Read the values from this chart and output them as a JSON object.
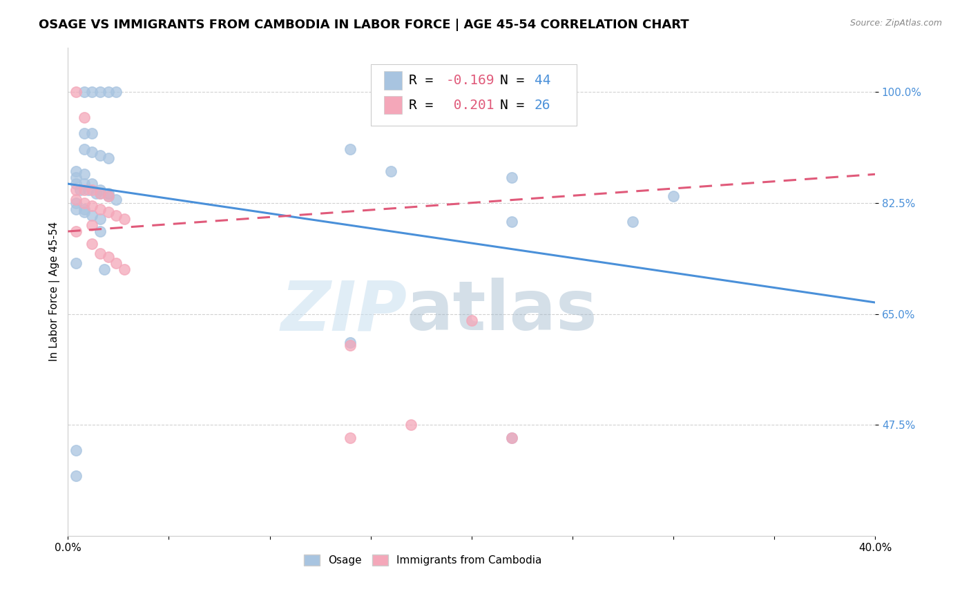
{
  "title": "OSAGE VS IMMIGRANTS FROM CAMBODIA IN LABOR FORCE | AGE 45-54 CORRELATION CHART",
  "source": "Source: ZipAtlas.com",
  "ylabel": "In Labor Force | Age 45-54",
  "xlim": [
    0.0,
    0.4
  ],
  "ylim": [
    0.3,
    1.07
  ],
  "yticks": [
    0.475,
    0.65,
    0.825,
    1.0
  ],
  "ytick_labels": [
    "47.5%",
    "65.0%",
    "82.5%",
    "100.0%"
  ],
  "xticks": [
    0.0,
    0.05,
    0.1,
    0.15,
    0.2,
    0.25,
    0.3,
    0.35,
    0.4
  ],
  "xtick_labels": [
    "0.0%",
    "",
    "",
    "",
    "",
    "",
    "",
    "",
    "40.0%"
  ],
  "blue_color": "#a8c4e0",
  "pink_color": "#f4a7b9",
  "blue_line_color": "#4a90d9",
  "pink_line_color": "#e05a7a",
  "grid_color": "#cccccc",
  "watermark_zip": "ZIP",
  "watermark_atlas": "atlas",
  "blue_scatter_x": [
    0.008,
    0.012,
    0.016,
    0.02,
    0.024,
    0.008,
    0.012,
    0.008,
    0.012,
    0.016,
    0.02,
    0.004,
    0.008,
    0.004,
    0.004,
    0.008,
    0.012,
    0.016,
    0.02,
    0.006,
    0.01,
    0.014,
    0.016,
    0.02,
    0.024,
    0.004,
    0.004,
    0.008,
    0.008,
    0.012,
    0.016,
    0.016,
    0.14,
    0.16,
    0.22,
    0.3,
    0.004,
    0.018,
    0.22,
    0.28,
    0.004,
    0.14,
    0.22,
    0.004
  ],
  "blue_scatter_y": [
    1.0,
    1.0,
    1.0,
    1.0,
    1.0,
    0.935,
    0.935,
    0.91,
    0.905,
    0.9,
    0.895,
    0.875,
    0.87,
    0.865,
    0.855,
    0.855,
    0.855,
    0.845,
    0.84,
    0.845,
    0.845,
    0.84,
    0.84,
    0.835,
    0.83,
    0.825,
    0.815,
    0.815,
    0.81,
    0.805,
    0.8,
    0.78,
    0.91,
    0.875,
    0.865,
    0.835,
    0.73,
    0.72,
    0.795,
    0.795,
    0.435,
    0.605,
    0.455,
    0.395
  ],
  "pink_scatter_x": [
    0.004,
    0.008,
    0.004,
    0.008,
    0.012,
    0.016,
    0.02,
    0.004,
    0.008,
    0.012,
    0.016,
    0.02,
    0.024,
    0.028,
    0.012,
    0.004,
    0.012,
    0.016,
    0.02,
    0.024,
    0.028,
    0.2,
    0.14,
    0.17,
    0.14,
    0.22
  ],
  "pink_scatter_y": [
    1.0,
    0.96,
    0.845,
    0.845,
    0.845,
    0.84,
    0.835,
    0.83,
    0.825,
    0.82,
    0.815,
    0.81,
    0.805,
    0.8,
    0.79,
    0.78,
    0.76,
    0.745,
    0.74,
    0.73,
    0.72,
    0.64,
    0.6,
    0.475,
    0.455,
    0.455
  ],
  "blue_trend_x": [
    0.0,
    0.4
  ],
  "blue_trend_y": [
    0.855,
    0.668
  ],
  "pink_trend_x": [
    0.0,
    0.4
  ],
  "pink_trend_y": [
    0.78,
    0.87
  ],
  "title_fontsize": 13,
  "axis_label_fontsize": 11,
  "tick_fontsize": 11,
  "legend_fontsize": 14
}
